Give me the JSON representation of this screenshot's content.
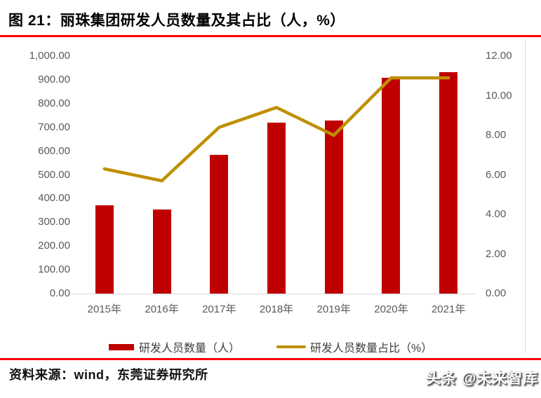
{
  "header": {
    "title": "图 21：丽珠集团研发人员数量及其占比（人，%）"
  },
  "colors": {
    "bar": "#C00000",
    "line": "#BF9000",
    "rule_red": "#FE0000",
    "axis_text": "#595959",
    "border_gray": "#D9D9D9"
  },
  "chart_data": {
    "type": "bar",
    "subtype": "combo-bar-line",
    "title": "丽珠集团研发人员数量及其占比（人，%）",
    "categories": [
      "2015年",
      "2016年",
      "2017年",
      "2018年",
      "2019年",
      "2020年",
      "2021年"
    ],
    "series": [
      {
        "name": "研发人员数量（人）",
        "type": "bar",
        "axis": "left",
        "values": [
          372,
          355,
          585,
          720,
          728,
          910,
          932
        ]
      },
      {
        "name": "研发人员数量占比（%）",
        "type": "line",
        "axis": "right",
        "values": [
          6.3,
          5.7,
          8.4,
          9.4,
          8.0,
          10.9,
          10.9
        ]
      }
    ],
    "left_axis": {
      "min": 0,
      "max": 1000,
      "tick_labels": [
        "1,000.00",
        "900.00",
        "800.00",
        "700.00",
        "600.00",
        "500.00",
        "400.00",
        "300.00",
        "200.00",
        "100.00",
        "0.00"
      ]
    },
    "right_axis": {
      "min": 0,
      "max": 12,
      "tick_labels": [
        "12.00",
        "10.00",
        "8.00",
        "6.00",
        "4.00",
        "2.00",
        "0.00"
      ]
    },
    "grid": false,
    "legend_position": "bottom"
  },
  "footer": {
    "source": "资料来源：wind，东莞证券研究所",
    "watermark": "头条 @未来智库"
  }
}
